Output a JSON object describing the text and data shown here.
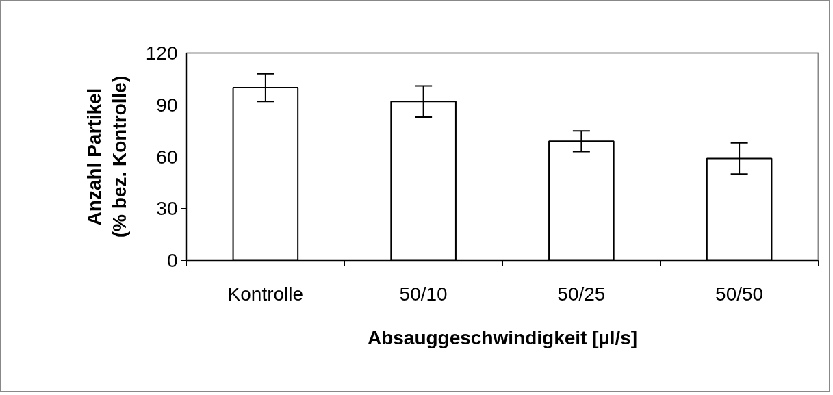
{
  "chart_data": {
    "type": "bar",
    "xlabel": "Absauggeschwindigkeit [µl/s]",
    "ylabel": "Anzahl Partikel\n(% bez. Kontrolle)",
    "categories": [
      "Kontrolle",
      "50/10",
      "50/25",
      "50/50"
    ],
    "values": [
      100,
      92,
      69,
      59
    ],
    "errors": [
      8,
      9,
      6,
      9
    ],
    "color": "#ffffff",
    "ylim": [
      0,
      120
    ],
    "yticks": [
      0,
      30,
      60,
      90,
      120
    ],
    "grid": false
  }
}
